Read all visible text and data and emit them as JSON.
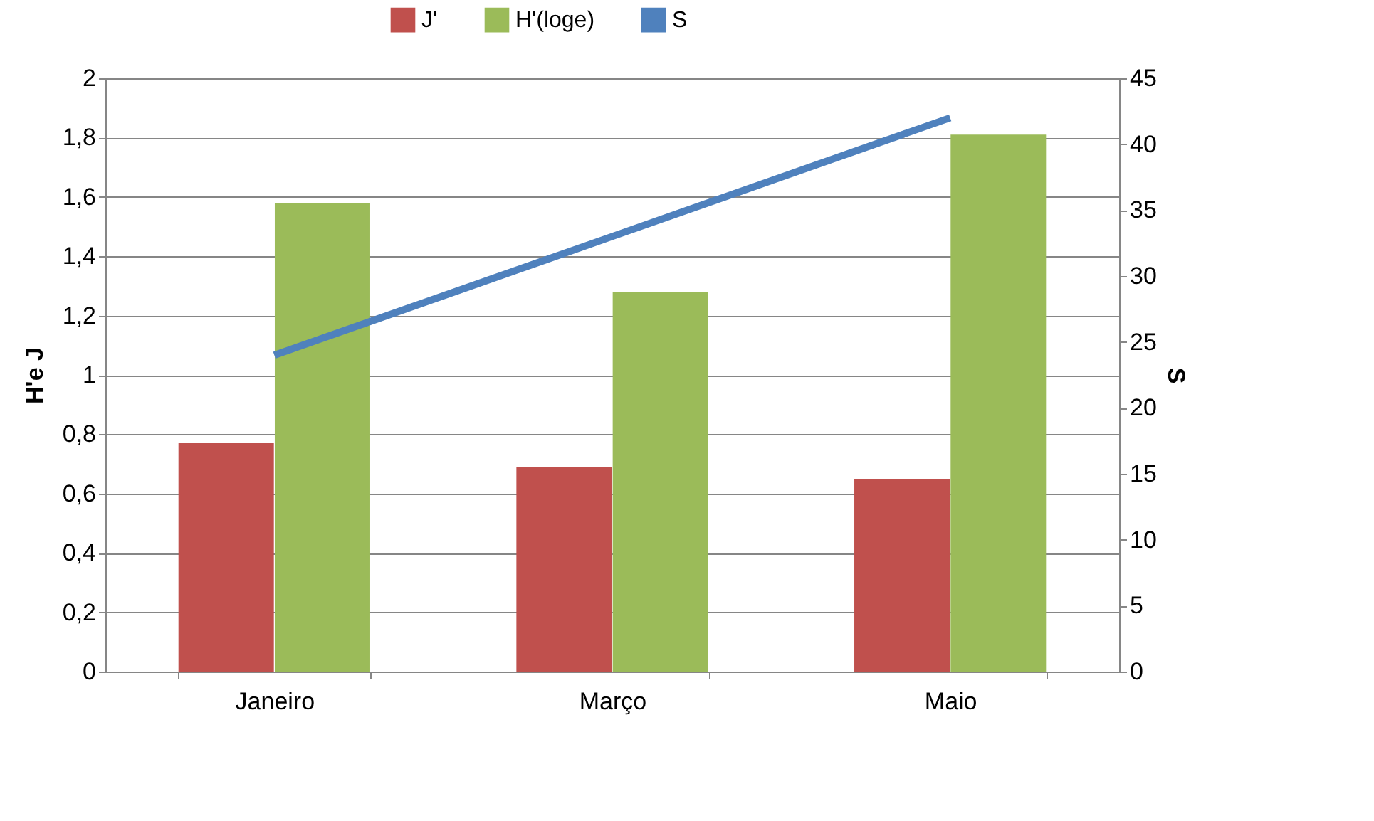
{
  "chart_data": {
    "type": "bar",
    "categories": [
      "Janeiro",
      "Março",
      "Maio"
    ],
    "series": [
      {
        "name": "J'",
        "color": "#c0504d",
        "values": [
          0.77,
          0.69,
          0.65
        ]
      },
      {
        "name": "H'(loge)",
        "color": "#9bbb59",
        "values": [
          1.58,
          1.28,
          1.81
        ]
      },
      {
        "name": "S",
        "color": "#4f81bd",
        "values": [
          24,
          33,
          42
        ],
        "type": "line",
        "axis": "y2"
      }
    ],
    "ylabel": "H'e J",
    "y2label": "S",
    "ylim": [
      0,
      2
    ],
    "yticks": [
      0,
      {
        "value": 0.2,
        "label": "0,2"
      },
      {
        "value": 0.4,
        "label": "0,4"
      },
      {
        "value": 0.6,
        "label": "0,6"
      },
      {
        "value": 0.8,
        "label": "0,8"
      },
      1,
      {
        "value": 1.2,
        "label": "1,2"
      },
      {
        "value": 1.4,
        "label": "1,4"
      },
      {
        "value": 1.6,
        "label": "1,6"
      },
      {
        "value": 1.8,
        "label": "1,8"
      },
      2
    ],
    "y2lim": [
      0,
      45
    ],
    "y2ticks": [
      0,
      5,
      10,
      15,
      20,
      25,
      30,
      35,
      40,
      45
    ],
    "grid": "y",
    "legend": "top"
  }
}
